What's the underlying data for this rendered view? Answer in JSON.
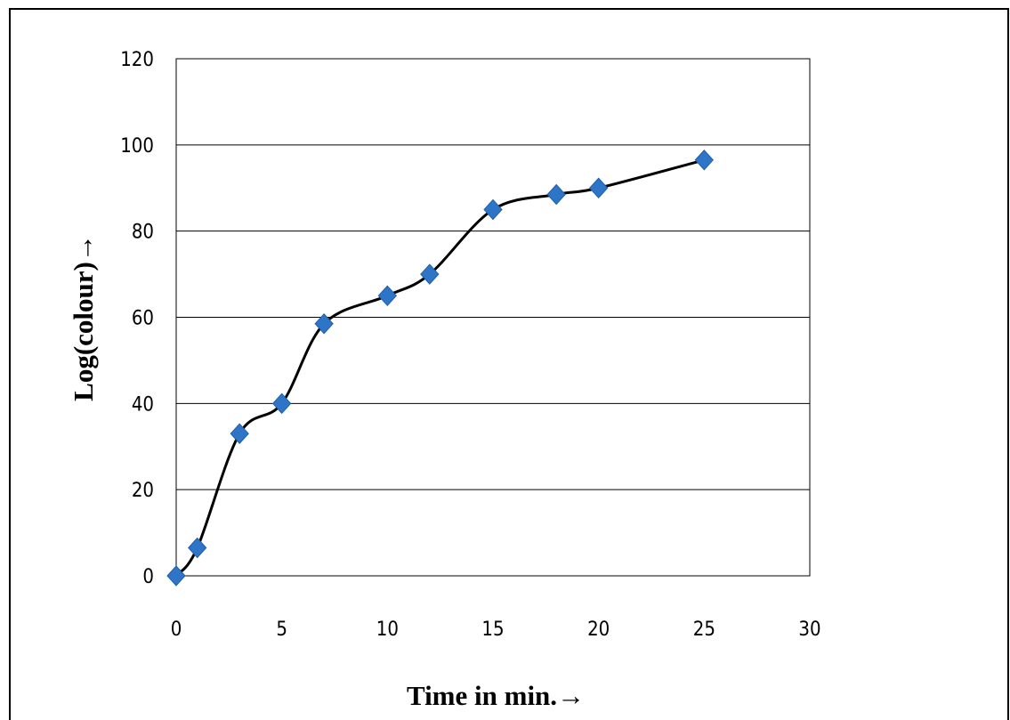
{
  "chart_data": {
    "type": "line",
    "title": "",
    "xlabel": "Time in min.→",
    "ylabel": "Log(colour)→",
    "xlim": [
      0,
      30
    ],
    "ylim": [
      0,
      120
    ],
    "x_ticks": [
      0,
      5,
      10,
      15,
      20,
      25,
      30
    ],
    "y_ticks": [
      0,
      20,
      40,
      60,
      80,
      100,
      120
    ],
    "grid": "horizontal",
    "legend": "none",
    "line_color": "#000000",
    "marker_color": "#2e75c8",
    "marker_shape": "diamond",
    "series": [
      {
        "x": [
          0,
          1,
          3,
          5,
          7,
          10,
          12,
          15,
          18,
          20,
          25
        ],
        "y": [
          0,
          6.5,
          33,
          40,
          58.5,
          65,
          70,
          85,
          88.5,
          90,
          96.5
        ]
      }
    ]
  }
}
